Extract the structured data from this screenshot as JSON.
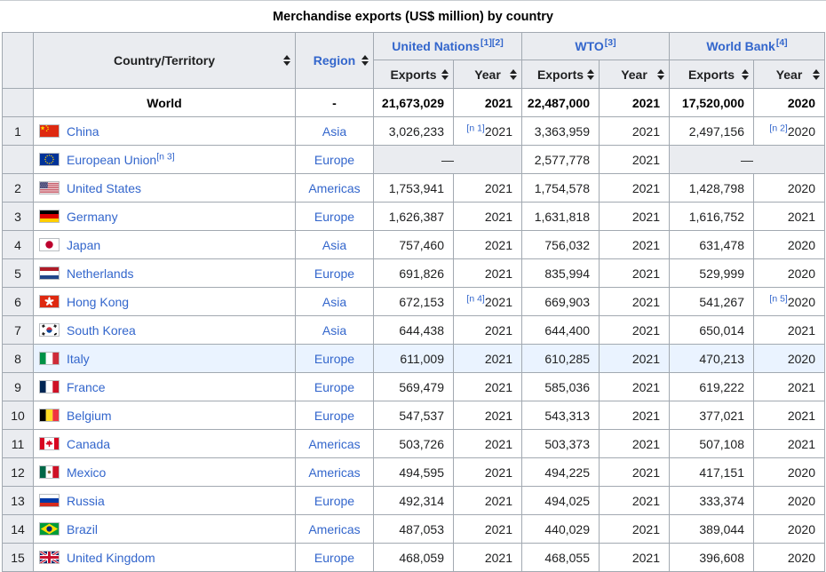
{
  "title": "Merchandise exports (US$ million) by country",
  "columns": {
    "country": "Country/Territory",
    "region": "Region",
    "exports": "Exports",
    "year": "Year",
    "groups": [
      {
        "label": "United Nations",
        "refs": "[1][2]"
      },
      {
        "label": "WTO",
        "refs": "[3]"
      },
      {
        "label": "World Bank",
        "refs": "[4]"
      }
    ]
  },
  "world": {
    "name": "World",
    "region": "-",
    "un": {
      "exports": "21,673,029",
      "year": "2021"
    },
    "wto": {
      "exports": "22,487,000",
      "year": "2021"
    },
    "wb": {
      "exports": "17,520,000",
      "year": "2020"
    }
  },
  "rows": [
    {
      "rank": "1",
      "country": "China",
      "flag": "cn",
      "region": "Asia",
      "un": {
        "exports": "3,026,233",
        "year_note": "[n 1]",
        "year": "2021"
      },
      "wto": {
        "exports": "3,363,959",
        "year": "2021"
      },
      "wb": {
        "exports": "2,497,156",
        "year_note": "[n 2]",
        "year": "2020"
      }
    },
    {
      "rank": "",
      "country": "European Union",
      "country_note": "[n 3]",
      "flag": "eu",
      "region": "Europe",
      "un": {
        "dash": "—"
      },
      "wto": {
        "exports": "2,577,778",
        "year": "2021"
      },
      "wb": {
        "dash": "—"
      }
    },
    {
      "rank": "2",
      "country": "United States",
      "flag": "us",
      "region": "Americas",
      "un": {
        "exports": "1,753,941",
        "year": "2021"
      },
      "wto": {
        "exports": "1,754,578",
        "year": "2021"
      },
      "wb": {
        "exports": "1,428,798",
        "year": "2020"
      }
    },
    {
      "rank": "3",
      "country": "Germany",
      "flag": "de",
      "region": "Europe",
      "un": {
        "exports": "1,626,387",
        "year": "2021"
      },
      "wto": {
        "exports": "1,631,818",
        "year": "2021"
      },
      "wb": {
        "exports": "1,616,752",
        "year": "2021"
      }
    },
    {
      "rank": "4",
      "country": "Japan",
      "flag": "jp",
      "region": "Asia",
      "un": {
        "exports": "757,460",
        "year": "2021"
      },
      "wto": {
        "exports": "756,032",
        "year": "2021"
      },
      "wb": {
        "exports": "631,478",
        "year": "2020"
      }
    },
    {
      "rank": "5",
      "country": "Netherlands",
      "flag": "nl",
      "region": "Europe",
      "un": {
        "exports": "691,826",
        "year": "2021"
      },
      "wto": {
        "exports": "835,994",
        "year": "2021"
      },
      "wb": {
        "exports": "529,999",
        "year": "2020"
      }
    },
    {
      "rank": "6",
      "country": "Hong Kong",
      "flag": "hk",
      "region": "Asia",
      "un": {
        "exports": "672,153",
        "year_note": "[n 4]",
        "year": "2021"
      },
      "wto": {
        "exports": "669,903",
        "year": "2021"
      },
      "wb": {
        "exports": "541,267",
        "year_note": "[n 5]",
        "year": "2020"
      }
    },
    {
      "rank": "7",
      "country": "South Korea",
      "flag": "kr",
      "region": "Asia",
      "un": {
        "exports": "644,438",
        "year": "2021"
      },
      "wto": {
        "exports": "644,400",
        "year": "2021"
      },
      "wb": {
        "exports": "650,014",
        "year": "2021"
      }
    },
    {
      "rank": "8",
      "country": "Italy",
      "flag": "it",
      "region": "Europe",
      "highlight": true,
      "un": {
        "exports": "611,009",
        "year": "2021"
      },
      "wto": {
        "exports": "610,285",
        "year": "2021"
      },
      "wb": {
        "exports": "470,213",
        "year": "2020"
      }
    },
    {
      "rank": "9",
      "country": "France",
      "flag": "fr",
      "region": "Europe",
      "un": {
        "exports": "569,479",
        "year": "2021"
      },
      "wto": {
        "exports": "585,036",
        "year": "2021"
      },
      "wb": {
        "exports": "619,222",
        "year": "2021"
      }
    },
    {
      "rank": "10",
      "country": "Belgium",
      "flag": "be",
      "region": "Europe",
      "un": {
        "exports": "547,537",
        "year": "2021"
      },
      "wto": {
        "exports": "543,313",
        "year": "2021"
      },
      "wb": {
        "exports": "377,021",
        "year": "2021"
      }
    },
    {
      "rank": "11",
      "country": "Canada",
      "flag": "ca",
      "region": "Americas",
      "un": {
        "exports": "503,726",
        "year": "2021"
      },
      "wto": {
        "exports": "503,373",
        "year": "2021"
      },
      "wb": {
        "exports": "507,108",
        "year": "2021"
      }
    },
    {
      "rank": "12",
      "country": "Mexico",
      "flag": "mx",
      "region": "Americas",
      "un": {
        "exports": "494,595",
        "year": "2021"
      },
      "wto": {
        "exports": "494,225",
        "year": "2021"
      },
      "wb": {
        "exports": "417,151",
        "year": "2020"
      }
    },
    {
      "rank": "13",
      "country": "Russia",
      "flag": "ru",
      "region": "Europe",
      "un": {
        "exports": "492,314",
        "year": "2021"
      },
      "wto": {
        "exports": "494,025",
        "year": "2021"
      },
      "wb": {
        "exports": "333,374",
        "year": "2020"
      }
    },
    {
      "rank": "14",
      "country": "Brazil",
      "flag": "br",
      "region": "Americas",
      "un": {
        "exports": "487,053",
        "year": "2021"
      },
      "wto": {
        "exports": "440,029",
        "year": "2021"
      },
      "wb": {
        "exports": "389,044",
        "year": "2020"
      }
    },
    {
      "rank": "15",
      "country": "United Kingdom",
      "flag": "gb",
      "region": "Europe",
      "un": {
        "exports": "468,059",
        "year": "2021"
      },
      "wto": {
        "exports": "468,055",
        "year": "2021"
      },
      "wb": {
        "exports": "396,608",
        "year": "2020"
      }
    }
  ],
  "colors": {
    "link": "#3366cc",
    "header_bg": "#eaecf0",
    "border": "#a2a9b1",
    "row_highlight": "#eaf3ff",
    "no_data_bg": "#eaecf0"
  }
}
